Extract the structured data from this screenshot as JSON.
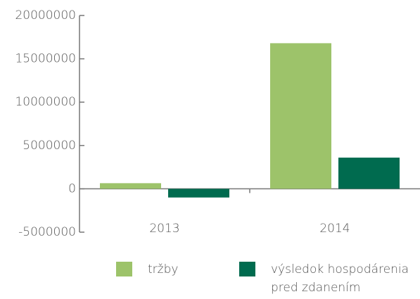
{
  "chart_data": {
    "type": "bar",
    "categories": [
      "2013",
      "2014"
    ],
    "series": [
      {
        "name": "tržby",
        "color": "#9dc36a",
        "values": [
          650000,
          16800000
        ]
      },
      {
        "name": "výsledok hospodárenia pred zdanením",
        "color": "#006b4f",
        "values": [
          -1000000,
          3600000
        ]
      }
    ],
    "ylim": [
      -5000000,
      20000000
    ],
    "yticks": [
      -5000000,
      0,
      5000000,
      10000000,
      15000000,
      20000000
    ]
  }
}
